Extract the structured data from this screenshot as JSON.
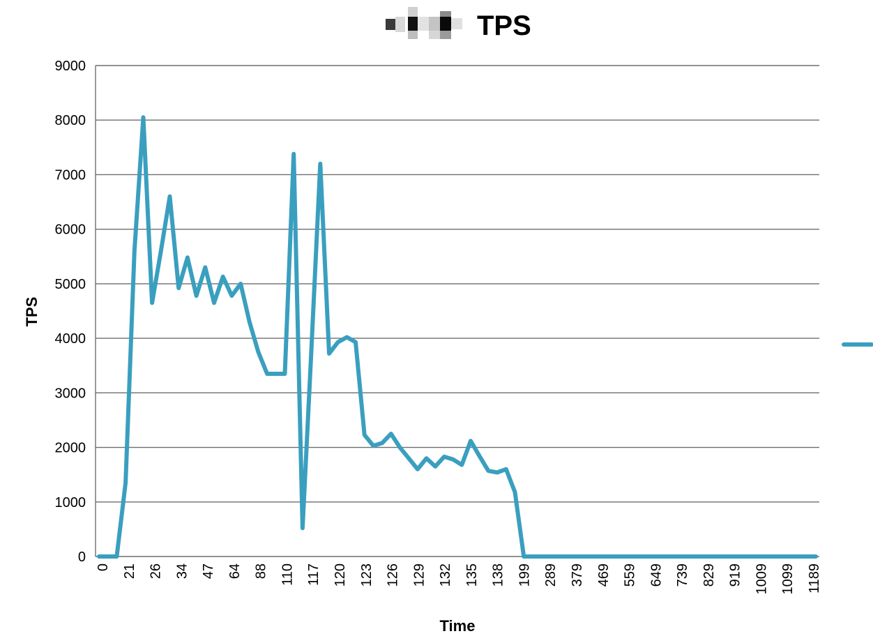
{
  "chart_data": {
    "type": "line",
    "title": "TPS",
    "xlabel": "Time",
    "ylabel": "TPS",
    "ylim": [
      0,
      9000
    ],
    "yticks": [
      0,
      1000,
      2000,
      3000,
      4000,
      5000,
      6000,
      7000,
      8000,
      9000
    ],
    "grid": true,
    "legend": "right",
    "color": "#3a9fbf",
    "x_tick_labels": [
      "0",
      "21",
      "26",
      "34",
      "47",
      "64",
      "88",
      "110",
      "117",
      "120",
      "123",
      "126",
      "129",
      "132",
      "135",
      "138",
      "199",
      "289",
      "379",
      "469",
      "559",
      "649",
      "739",
      "829",
      "919",
      "1009",
      "1099",
      "1189"
    ],
    "series": [
      {
        "values": [
          0,
          0,
          0,
          1350,
          5600,
          8050,
          4650,
          5600,
          6600,
          4920,
          5480,
          4780,
          5300,
          4650,
          5130,
          4780,
          5000,
          4300,
          3750,
          3350,
          3350,
          3350,
          7380,
          520,
          3800,
          7200,
          3720,
          3930,
          4020,
          3930,
          2230,
          2030,
          2080,
          2250,
          2000,
          1800,
          1600,
          1800,
          1650,
          1830,
          1780,
          1680,
          2120,
          1840,
          1570,
          1540,
          1600,
          1180,
          0,
          0,
          0,
          0,
          0,
          0,
          0,
          0,
          0,
          0,
          0,
          0,
          0,
          0,
          0,
          0,
          0,
          0,
          0,
          0,
          0,
          0,
          0,
          0,
          0,
          0,
          0,
          0,
          0,
          0,
          0,
          0,
          0,
          0
        ]
      }
    ]
  }
}
